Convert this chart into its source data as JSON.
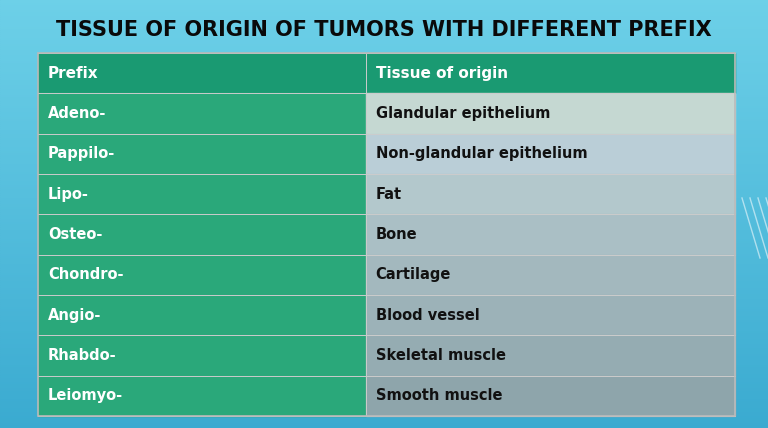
{
  "title": "TISSUE OF ORIGIN OF TUMORS WITH DIFFERENT PREFIX",
  "title_fontsize": 15,
  "title_color": "#0A0A0A",
  "title_fontweight": "bold",
  "bg_top": "#6DD0E8",
  "bg_bottom": "#3AAAD0",
  "table_border_color": "#AAAAAA",
  "header_bg_color": "#1A9A72",
  "header_text_color": "#FFFFFF",
  "col1_bg": "#2AA87A",
  "col1_text": "#FFFFFF",
  "col2_bg_rows": [
    "#C5D8D2",
    "#BACED7",
    "#B3C8CC",
    "#AABFC5",
    "#A3B8BE",
    "#9CB2B8",
    "#95ACB2",
    "#8EA5AB"
  ],
  "col2_text": "#111111",
  "col1_header": "Prefix",
  "col2_header": "Tissue of origin",
  "rows": [
    [
      "Adeno-",
      "Glandular epithelium"
    ],
    [
      "Pappilo-",
      "Non-glandular epithelium"
    ],
    [
      "Lipo-",
      "Fat"
    ],
    [
      "Osteo-",
      "Bone"
    ],
    [
      "Chondro-",
      "Cartilage"
    ],
    [
      "Angio-",
      "Blood vessel"
    ],
    [
      "Rhabdo-",
      "Skeletal muscle"
    ],
    [
      "Leiomyo-",
      "Smooth muscle"
    ]
  ],
  "cell_fontsize": 10.5,
  "header_fontsize": 11
}
